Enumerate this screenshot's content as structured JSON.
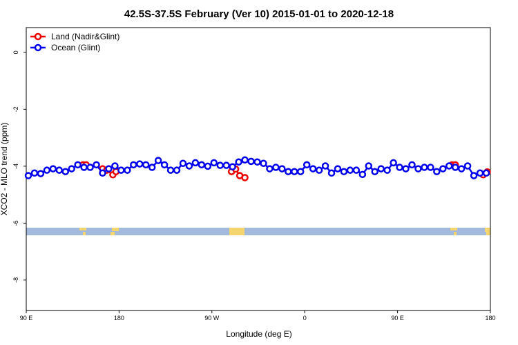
{
  "chart_data": {
    "type": "line",
    "title": "42.5S-37.5S February (Ver 10)   2015-01-01 to 2020-12-18",
    "x_label": "Longitude (deg E)",
    "y_label": "XCO2 - MLO trend (ppm)",
    "xlim": [
      90,
      540
    ],
    "ylim": [
      -9.07,
      0.87
    ],
    "xticks": [
      {
        "value": 90,
        "label": "90 E"
      },
      180,
      {
        "value": 270,
        "label": "90 W"
      },
      {
        "value": 360,
        "label": "0"
      },
      {
        "value": 450,
        "label": "90 E"
      },
      {
        "value": 540,
        "label": "180"
      }
    ],
    "yticks": [
      0,
      -2,
      -4,
      -6,
      -8
    ],
    "legend": "top-left",
    "series": [
      {
        "name": "Land (Nadir&Glint)",
        "color": "#ee0000",
        "x": [
          145,
          148,
          null,
          164,
          168,
          174,
          177,
          null,
          289,
          293,
          297,
          302,
          null,
          503,
          506,
          null,
          533,
          537
        ],
        "values": [
          -3.95,
          -3.95,
          null,
          -4.09,
          -4.14,
          -4.3,
          -4.19,
          null,
          -4.19,
          -4.1,
          -4.33,
          -4.4,
          null,
          -3.95,
          -3.95,
          null,
          -4.3,
          -4.2
        ]
      },
      {
        "name": "Ocean (Glint)",
        "color": "#0000ee",
        "x": [
          92,
          98,
          104,
          110,
          116,
          122,
          128,
          134,
          140,
          146,
          152,
          158,
          164,
          170,
          176,
          182,
          188,
          194,
          200,
          206,
          212,
          218,
          224,
          230,
          236,
          242,
          248,
          254,
          260,
          266,
          272,
          278,
          284,
          290,
          296,
          302,
          308,
          314,
          320,
          326,
          332,
          338,
          344,
          350,
          356,
          362,
          368,
          374,
          380,
          386,
          392,
          398,
          404,
          410,
          416,
          422,
          428,
          434,
          440,
          446,
          452,
          458,
          464,
          470,
          476,
          482,
          488,
          494,
          500,
          506,
          512,
          518,
          524,
          530,
          536
        ],
        "values": [
          -4.33,
          -4.24,
          -4.26,
          -4.14,
          -4.09,
          -4.14,
          -4.19,
          -4.09,
          -3.95,
          -4.04,
          -4.04,
          -3.95,
          -4.24,
          -4.09,
          -3.99,
          -4.14,
          -4.14,
          -3.95,
          -3.92,
          -3.95,
          -4.04,
          -3.8,
          -3.95,
          -4.14,
          -4.14,
          -3.9,
          -3.99,
          -3.88,
          -3.95,
          -4.0,
          -3.88,
          -3.97,
          -3.97,
          -4.02,
          -3.85,
          -3.78,
          -3.83,
          -3.85,
          -3.9,
          -4.09,
          -4.04,
          -4.09,
          -4.19,
          -4.19,
          -4.19,
          -3.95,
          -4.09,
          -4.14,
          -3.99,
          -4.24,
          -4.09,
          -4.19,
          -4.14,
          -4.14,
          -4.29,
          -3.99,
          -4.19,
          -4.09,
          -4.14,
          -3.88,
          -4.04,
          -4.09,
          -3.95,
          -4.09,
          -4.04,
          -4.04,
          -4.19,
          -4.09,
          -3.99,
          -4.04,
          -4.09,
          -3.99,
          -4.33,
          -4.24,
          -4.24
        ]
      }
    ]
  }
}
